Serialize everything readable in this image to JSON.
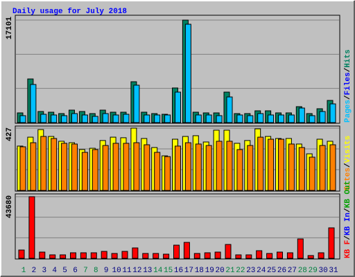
{
  "title": "Daily usage for July 2018",
  "legend_separator": "/",
  "chart_data": [
    {
      "type": "bar",
      "ylim": [
        0,
        17101
      ],
      "yticks": [
        17101
      ],
      "series": [
        {
          "name": "Pages",
          "color": "#00c0ff",
          "values": [
            1155,
            6355,
            1386,
            1271,
            1155,
            1502,
            1271,
            1040,
            1502,
            1271,
            1386,
            6240,
            1271,
            1271,
            1271,
            5084,
            16408,
            1271,
            1271,
            1155,
            4275,
            1271,
            1155,
            1502,
            1271,
            1271,
            1271,
            2426,
            1155,
            1848,
            3120
          ]
        },
        {
          "name": "Hits",
          "color": "#008060",
          "values": [
            1618,
            7280,
            1850,
            1733,
            1502,
            2080,
            1850,
            1502,
            2080,
            1733,
            1733,
            6817,
            1733,
            1502,
            1387,
            5777,
            17101,
            1733,
            1618,
            1618,
            5084,
            1502,
            1502,
            1964,
            1964,
            1618,
            1618,
            2657,
            1502,
            2311,
            3697
          ]
        }
      ],
      "legend_extra": [
        {
          "name": "Files",
          "color": "#0000ff"
        }
      ]
    },
    {
      "type": "bar",
      "ylim": [
        0,
        427
      ],
      "yticks": [
        427
      ],
      "series": [
        {
          "name": "Sites",
          "color": "#ff8000",
          "values": [
            299,
            327,
            370,
            356,
            323,
            318,
            261,
            280,
            308,
            323,
            323,
            327,
            313,
            261,
            232,
            304,
            327,
            318,
            308,
            337,
            337,
            280,
            308,
            365,
            351,
            351,
            318,
            294,
            228,
            308,
            313
          ]
        },
        {
          "name": "Visits",
          "color": "#ffff00",
          "values": [
            304,
            365,
            417,
            370,
            337,
            327,
            280,
            289,
            342,
            365,
            361,
            427,
            356,
            294,
            237,
            351,
            370,
            375,
            332,
            413,
            413,
            323,
            342,
            422,
            370,
            356,
            356,
            318,
            251,
            351,
            337
          ]
        }
      ]
    },
    {
      "type": "bar",
      "ylim": [
        0,
        43680
      ],
      "yticks": [
        43680
      ],
      "categories": [
        "1",
        "2",
        "3",
        "4",
        "5",
        "6",
        "7",
        "8",
        "9",
        "10",
        "11",
        "12",
        "13",
        "14",
        "15",
        "16",
        "17",
        "18",
        "19",
        "20",
        "21",
        "22",
        "23",
        "24",
        "25",
        "26",
        "27",
        "28",
        "29",
        "30",
        "31"
      ],
      "category_color": "#000080",
      "highlight_color": "#008040",
      "highlighted": [
        0,
        6,
        7,
        13,
        14,
        20,
        21,
        27,
        28
      ],
      "series": [
        {
          "name": "KB F",
          "color": "#ff0000",
          "values": [
            5890,
            43680,
            4417,
            2454,
            2454,
            3926,
            3926,
            3926,
            4908,
            3436,
            4908,
            7362,
            3436,
            3436,
            2945,
            9325,
            11288,
            3436,
            3926,
            4417,
            9816,
            2454,
            2454,
            5399,
            3436,
            4417,
            3926,
            13742,
            1963,
            3926,
            21595
          ]
        }
      ],
      "legend_extra": [
        {
          "name": "KB In",
          "color": "#0000ff"
        },
        {
          "name": "KB Out",
          "color": "#00a000"
        }
      ]
    }
  ]
}
